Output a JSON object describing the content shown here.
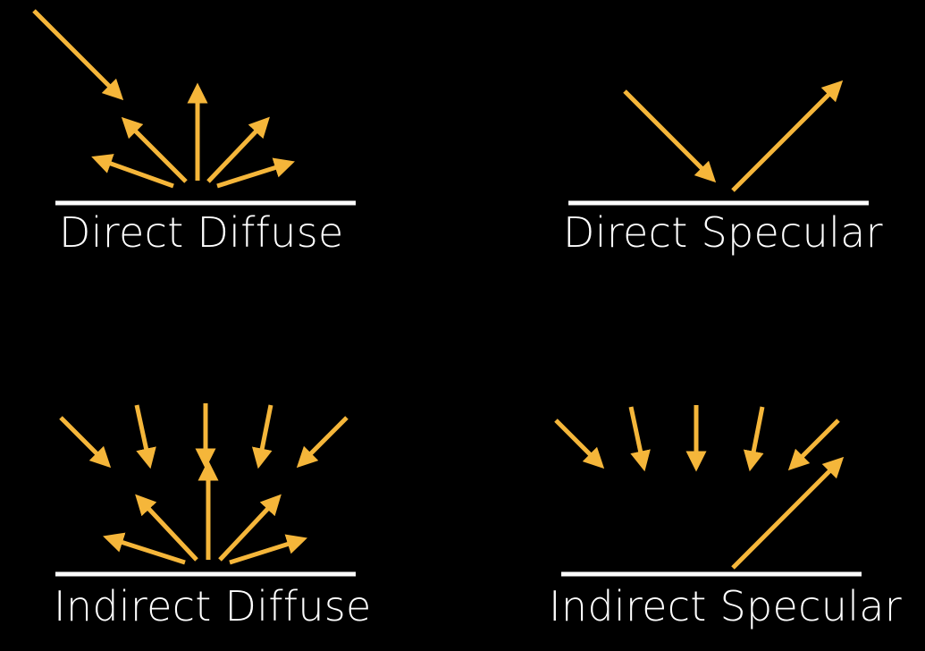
{
  "colors": {
    "background": "#000000",
    "ray": "#f5b63a",
    "surface": "#ffffff",
    "label": "#ffffff"
  },
  "panels": {
    "direct_diffuse": {
      "label": "Direct Diffuse"
    },
    "direct_specular": {
      "label": "Direct Specular"
    },
    "indirect_diffuse": {
      "label": "Indirect Diffuse"
    },
    "indirect_specular": {
      "label": "Indirect Specular"
    }
  }
}
